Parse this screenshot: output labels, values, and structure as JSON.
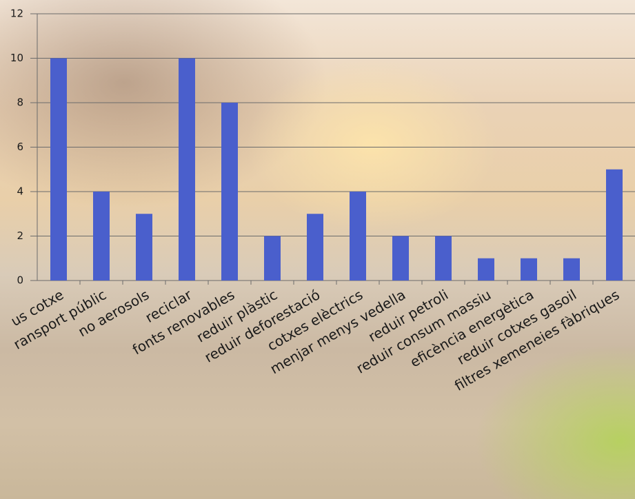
{
  "chart_data": {
    "type": "bar",
    "categories": [
      "us cotxe",
      "ransport públic",
      "no aerosols",
      "reciclar",
      "fonts renovables",
      "reduir plàstic",
      "reduir deforestació",
      "cotxes elèctrics",
      "menjar menys vedella",
      "reduir petroli",
      "reduir consum massiu",
      "eficència energètica",
      "reduir cotxes gasoil",
      "filtres xemeneies fàbriques"
    ],
    "values": [
      10,
      4,
      3,
      10,
      8,
      2,
      3,
      4,
      2,
      2,
      1,
      1,
      1,
      5
    ],
    "color": "#4a5fcc",
    "ylim": [
      0,
      12
    ],
    "yticks": [
      0,
      2,
      4,
      6,
      8,
      10,
      12
    ],
    "grid": true
  }
}
